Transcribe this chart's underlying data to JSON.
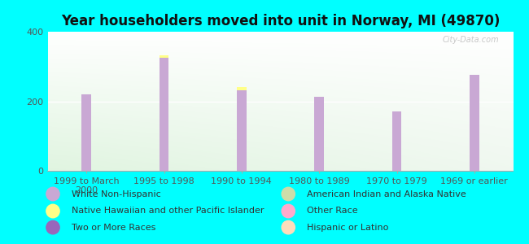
{
  "title": "Year householders moved into unit in Norway, MI (49870)",
  "background_color": "#00FFFF",
  "categories": [
    "1999 to March\n2000",
    "1995 to 1998",
    "1990 to 1994",
    "1980 to 1989",
    "1970 to 1979",
    "1969 or earlier"
  ],
  "series": [
    {
      "name": "White Non-Hispanic",
      "color": "#c9a8d4",
      "values": [
        220,
        325,
        232,
        213,
        170,
        275
      ]
    },
    {
      "name": "Native Hawaiian and other Pacific Islander",
      "color": "#ffff88",
      "values": [
        0,
        8,
        8,
        0,
        0,
        0
      ]
    },
    {
      "name": "American Indian and Alaska Native",
      "color": "#ccddaa",
      "values": [
        0,
        0,
        0,
        0,
        0,
        0
      ]
    },
    {
      "name": "Other Race",
      "color": "#ffaacc",
      "values": [
        0,
        0,
        0,
        0,
        0,
        0
      ]
    },
    {
      "name": "Two or More Races",
      "color": "#9966bb",
      "values": [
        0,
        0,
        0,
        0,
        0,
        0
      ]
    },
    {
      "name": "Hispanic or Latino",
      "color": "#ffddbb",
      "values": [
        0,
        0,
        0,
        0,
        0,
        0
      ]
    }
  ],
  "legend_items_left": [
    {
      "name": "White Non-Hispanic",
      "color": "#c9a8d4"
    },
    {
      "name": "Native Hawaiian and other Pacific Islander",
      "color": "#ffff88"
    },
    {
      "name": "Two or More Races",
      "color": "#9966bb"
    }
  ],
  "legend_items_right": [
    {
      "name": "American Indian and Alaska Native",
      "color": "#ccddaa"
    },
    {
      "name": "Other Race",
      "color": "#ffaacc"
    },
    {
      "name": "Hispanic or Latino",
      "color": "#ffddbb"
    }
  ],
  "ylim": [
    0,
    400
  ],
  "yticks": [
    0,
    200,
    400
  ],
  "bar_width": 0.12,
  "title_fontsize": 12,
  "tick_fontsize": 8,
  "legend_fontsize": 8,
  "watermark": "City-Data.com"
}
